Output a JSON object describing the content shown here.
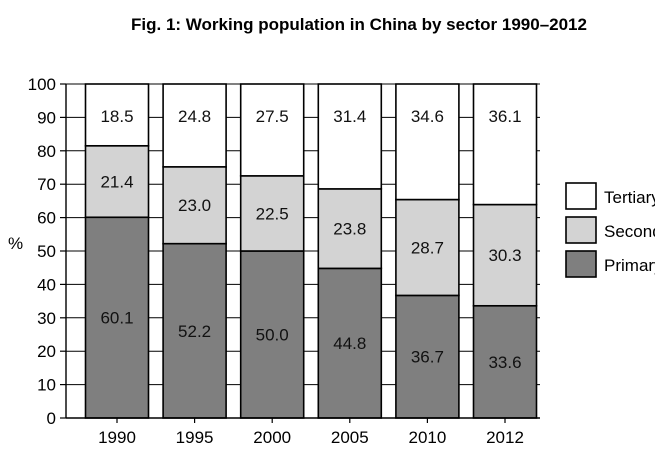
{
  "chart_data": {
    "type": "bar",
    "stacked": true,
    "title": "Fig. 1: Working population in China by sector 1990–2012",
    "xlabel": "",
    "ylabel": "%",
    "ylim": [
      0,
      100
    ],
    "yticks": [
      0,
      10,
      20,
      30,
      40,
      50,
      60,
      70,
      80,
      90,
      100
    ],
    "categories": [
      "1990",
      "1995",
      "2000",
      "2005",
      "2010",
      "2012"
    ],
    "series": [
      {
        "name": "Primary",
        "values": [
          60.1,
          52.2,
          50.0,
          44.8,
          36.7,
          33.6
        ],
        "color": "#7f7f7f"
      },
      {
        "name": "Secondary",
        "values": [
          21.4,
          23.0,
          22.5,
          23.8,
          28.7,
          30.3
        ],
        "color": "#d3d3d3"
      },
      {
        "name": "Tertiary",
        "values": [
          18.5,
          24.8,
          27.5,
          31.4,
          34.6,
          36.1
        ],
        "color": "#ffffff"
      }
    ],
    "data_labels": [
      [
        "60.1",
        "52.2",
        "50.0",
        "44.8",
        "36.7",
        "33.6"
      ],
      [
        "21.4",
        "23.0",
        "22.5",
        "23.8",
        "28.7",
        "30.3"
      ],
      [
        "18.5",
        "24.8",
        "27.5",
        "31.4",
        "34.6",
        "36.1"
      ]
    ],
    "legend": {
      "position": "right",
      "order": [
        "Tertiary",
        "Secondary",
        "Primary"
      ]
    },
    "grid": {
      "y": true,
      "x": false
    }
  }
}
